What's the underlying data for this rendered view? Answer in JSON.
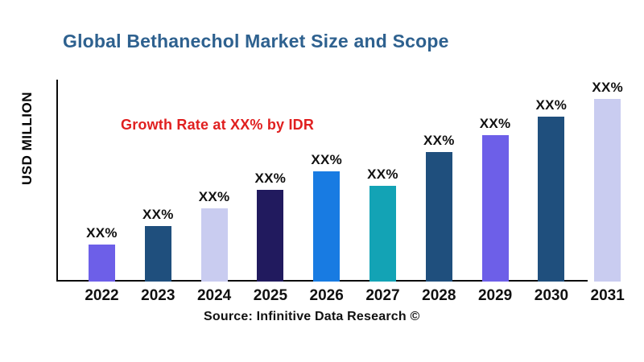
{
  "header": {
    "title": "Global Bethanechol Market Size and Scope",
    "title_color": "#2E618F"
  },
  "axis": {
    "y_label": "USD MILLION"
  },
  "annotation": {
    "text": "Growth Rate at XX% by IDR",
    "color": "#E02020"
  },
  "footer": {
    "source": "Source: Infinitive Data Research ©"
  },
  "chart_data": {
    "type": "bar",
    "title": "Global Bethanechol Market Size and Scope",
    "categories": [
      "2022",
      "2023",
      "2024",
      "2025",
      "2026",
      "2027",
      "2028",
      "2029",
      "2030",
      "2031"
    ],
    "values": [
      46,
      69,
      91,
      114,
      137,
      119,
      161,
      182,
      205,
      229
    ],
    "value_labels": [
      "XX%",
      "XX%",
      "XX%",
      "XX%",
      "XX%",
      "XX%",
      "XX%",
      "XX%",
      "XX%",
      "XX%"
    ],
    "colors": [
      "#6D5FE8",
      "#1F4F7D",
      "#C9CCF0",
      "#211A5E",
      "#187BE2",
      "#13A3B5",
      "#1F4F7D",
      "#6D5FE8",
      "#1F4F7D",
      "#C9CCF0"
    ],
    "xlabel": "",
    "ylabel": "USD MILLION",
    "ylim": [
      0,
      250
    ],
    "grid": false,
    "legend": false,
    "annotation": "Growth Rate at XX% by IDR",
    "source": "Source: Infinitive Data Research ©"
  }
}
